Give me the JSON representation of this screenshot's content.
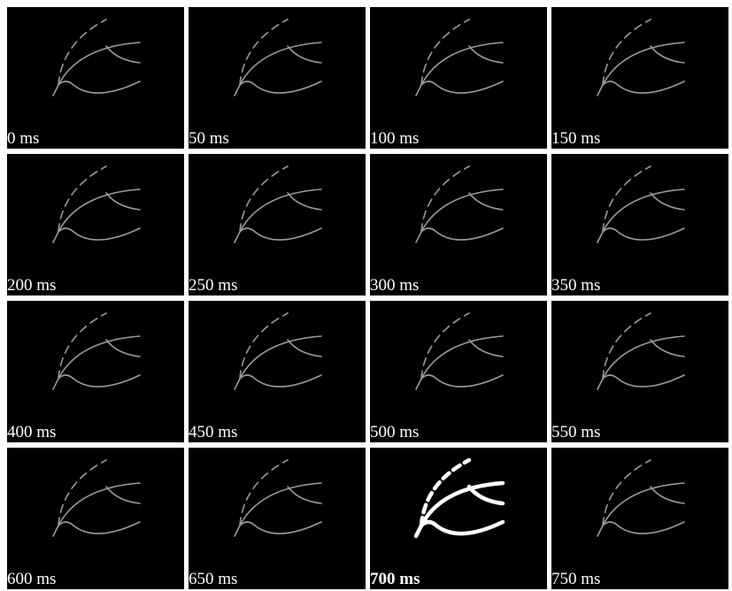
{
  "frames": [
    "0 ms",
    "50 ms",
    "100 ms",
    "150 ms",
    "200 ms",
    "250 ms",
    "300 ms",
    "350 ms",
    "400 ms",
    "450 ms",
    "500 ms",
    "550 ms",
    "600 ms",
    "650 ms",
    "700 ms",
    "750 ms"
  ]
}
